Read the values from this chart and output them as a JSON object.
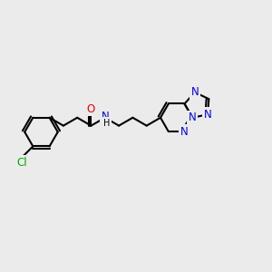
{
  "bg_color": "#ebebeb",
  "bond_color": "#000000",
  "bond_width": 1.5,
  "atom_colors": {
    "C": "#000000",
    "N": "#0000ee",
    "O": "#ee0000",
    "Cl": "#00aa00",
    "H": "#000000"
  },
  "font_size": 8.5,
  "figsize": [
    3.0,
    3.0
  ],
  "dpi": 100
}
